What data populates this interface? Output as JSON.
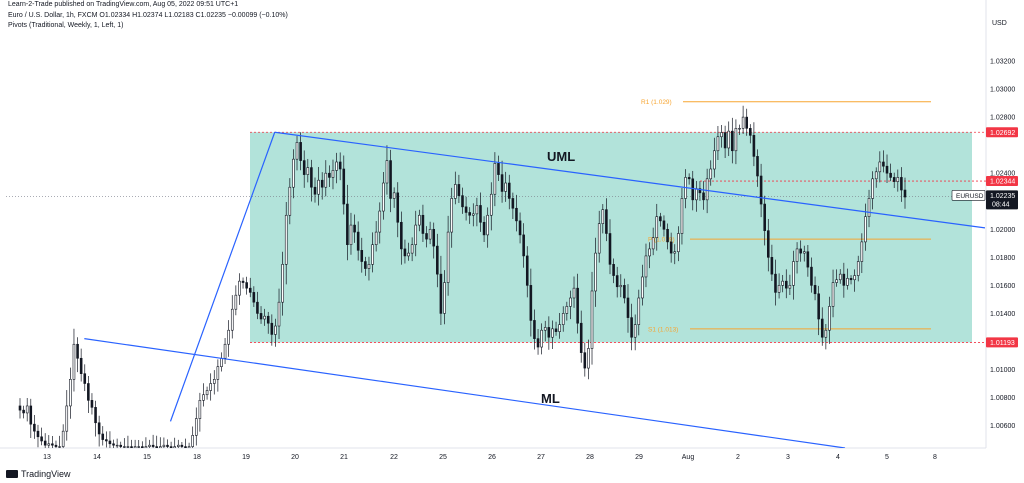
{
  "header": {
    "published": "Learn-2-Trade published on TradingView.com, Aug 05, 2022 09:51 UTC+1",
    "ohlc": "Euro / U.S. Dollar, 1h, FXCM  O1.02334  H1.02374  L1.02183  C1.02235  −0.00099 (−0.10%)",
    "indicator": "Pivots (Traditional, Weekly, 1, Left, 1)"
  },
  "footer": {
    "brand": "TradingView"
  },
  "chart_data": {
    "type": "candlestick",
    "symbol": "EURUSD",
    "currency": "USD",
    "y_range": [
      1.0044,
      1.034
    ],
    "y_ticks": [
      "1.03200",
      "1.03000",
      "1.02800",
      "1.02400",
      "1.02000",
      "1.01800",
      "1.01600",
      "1.01400",
      "1.01000",
      "1.00800",
      "1.00600"
    ],
    "x_ticks": [
      "13",
      "14",
      "15",
      "18",
      "19",
      "20",
      "21",
      "22",
      "25",
      "26",
      "27",
      "28",
      "29",
      "Aug",
      "2",
      "3",
      "4",
      "5",
      "8"
    ],
    "price_label": {
      "symbol": "EURUSD",
      "price": "1.02235",
      "countdown": "08:44",
      "value": 1.02235,
      "color": "#131722"
    },
    "level_labels": [
      {
        "text": "1.02692",
        "value": 1.02692,
        "color": "#f23645"
      },
      {
        "text": "1.02344",
        "value": 1.02344,
        "color": "#f23645"
      },
      {
        "text": "1.01193",
        "value": 1.01193,
        "color": "#f23645"
      }
    ],
    "range_box": {
      "top": 1.02692,
      "bottom": 1.01193,
      "fill": "#b2e3da"
    },
    "pivots": [
      {
        "label": "R1 (1.029)",
        "value": 1.0291,
        "color": "#f7a531"
      },
      {
        "label": "P (1.019)",
        "value": 1.0193,
        "color": "#f7a531"
      },
      {
        "label": "S1 (1.013)",
        "value": 1.0129,
        "color": "#f7a531"
      }
    ],
    "annotations": [
      {
        "text": "UML"
      },
      {
        "text": "ML"
      }
    ],
    "trendline_color": "#2962ff",
    "series_close": [
      1.0071,
      1.0069,
      1.0074,
      1.0061,
      1.0056,
      1.0052,
      1.0049,
      1.0046,
      1.0047,
      1.0046,
      1.0045,
      1.0045,
      1.0056,
      1.0074,
      1.0093,
      1.0118,
      1.0108,
      1.0097,
      1.009,
      1.0078,
      1.0073,
      1.0062,
      1.0054,
      1.005,
      1.0049,
      1.0047,
      1.0046,
      1.0046,
      1.0045,
      1.0045,
      1.0045,
      1.0044,
      1.0045,
      1.0045,
      1.0044,
      1.0045,
      1.0046,
      1.0045,
      1.0044,
      1.0045,
      1.0046,
      1.0045,
      1.0044,
      1.0045,
      1.0046,
      1.0045,
      1.0044,
      1.0045,
      1.0053,
      1.0065,
      1.0078,
      1.0082,
      1.0085,
      1.009,
      1.0093,
      1.0102,
      1.0108,
      1.0118,
      1.0128,
      1.0143,
      1.0153,
      1.0163,
      1.0162,
      1.0158,
      1.0155,
      1.0148,
      1.014,
      1.0136,
      1.0138,
      1.0133,
      1.0125,
      1.0131,
      1.0148,
      1.0175,
      1.021,
      1.023,
      1.025,
      1.0262,
      1.0249,
      1.0239,
      1.0244,
      1.023,
      1.0225,
      1.0235,
      1.023,
      1.024,
      1.0237,
      1.0242,
      1.0248,
      1.0243,
      1.0218,
      1.0189,
      1.0203,
      1.0198,
      1.0185,
      1.0177,
      1.0172,
      1.0175,
      1.0189,
      1.0198,
      1.0213,
      1.0233,
      1.0249,
      1.0222,
      1.0226,
      1.0205,
      1.0186,
      1.0181,
      1.0183,
      1.0189,
      1.0203,
      1.021,
      1.0197,
      1.0193,
      1.02,
      1.0188,
      1.0168,
      1.014,
      1.0162,
      1.0198,
      1.0222,
      1.0232,
      1.0224,
      1.0216,
      1.0212,
      1.021,
      1.0211,
      1.0217,
      1.0205,
      1.0196,
      1.021,
      1.0225,
      1.0247,
      1.0239,
      1.0227,
      1.0233,
      1.0222,
      1.0215,
      1.0206,
      1.0196,
      1.0181,
      1.016,
      1.0135,
      1.0122,
      1.0116,
      1.0128,
      1.013,
      1.0123,
      1.0129,
      1.0127,
      1.0132,
      1.014,
      1.0145,
      1.0151,
      1.0158,
      1.0133,
      1.0112,
      1.0101,
      1.0115,
      1.0156,
      1.0183,
      1.0204,
      1.0214,
      1.0197,
      1.0175,
      1.0167,
      1.0159,
      1.016,
      1.0151,
      1.0137,
      1.0123,
      1.0132,
      1.0151,
      1.0166,
      1.0181,
      1.0186,
      1.0194,
      1.0209,
      1.0206,
      1.02,
      1.0191,
      1.0183,
      1.0184,
      1.0197,
      1.0222,
      1.0237,
      1.0236,
      1.0221,
      1.0229,
      1.0226,
      1.0221,
      1.0236,
      1.0243,
      1.0256,
      1.0266,
      1.0269,
      1.0258,
      1.027,
      1.0256,
      1.0272,
      1.0272,
      1.028,
      1.0272,
      1.0267,
      1.0252,
      1.0238,
      1.0218,
      1.0199,
      1.018,
      1.0168,
      1.0155,
      1.016,
      1.0163,
      1.0158,
      1.016,
      1.0177,
      1.0186,
      1.0183,
      1.0184,
      1.0173,
      1.016,
      1.0154,
      1.0136,
      1.0123,
      1.0128,
      1.0145,
      1.0162,
      1.0164,
      1.0168,
      1.016,
      1.0165,
      1.0164,
      1.0167,
      1.0177,
      1.0191,
      1.0209,
      1.0222,
      1.0236,
      1.0241,
      1.0248,
      1.0245,
      1.024,
      1.0237,
      1.0234,
      1.0237,
      1.0228,
      1.0223
    ],
    "trendlines": [
      {
        "points": [
          [
            0.168,
            1.0063
          ],
          [
            0.2745,
            1.02692
          ]
        ]
      },
      {
        "points": [
          [
            0.2745,
            1.02692
          ],
          [
            1.0,
            1.0201
          ]
        ]
      },
      {
        "points": [
          [
            0.08,
            1.0122
          ],
          [
            0.857,
            1.0044
          ]
        ]
      }
    ]
  }
}
